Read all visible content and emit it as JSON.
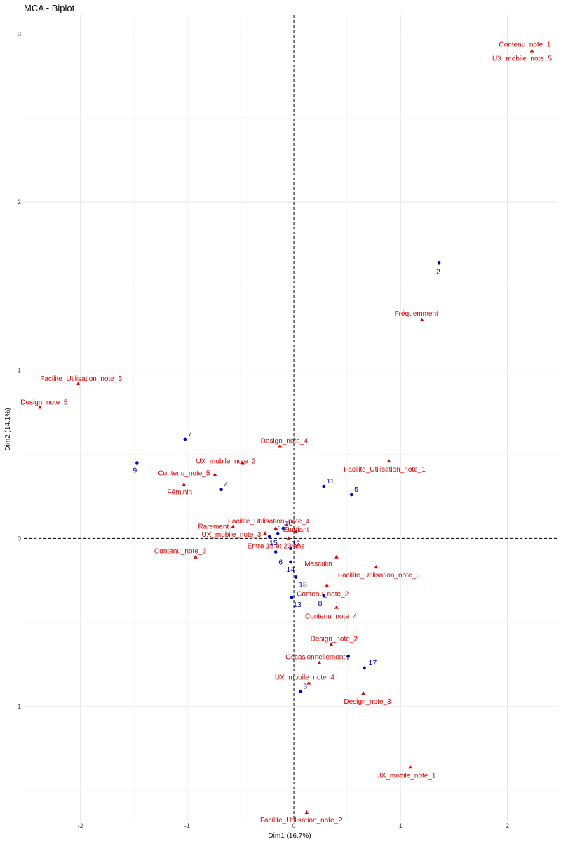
{
  "chart_data": {
    "type": "scatter",
    "title": "MCA - Biplot",
    "xlabel": "Dim1 (16.7%)",
    "ylabel": "Dim2 (14.1%)",
    "xlim": [
      -2.53,
      2.47
    ],
    "ylim": [
      -1.68,
      3.11
    ],
    "xticks": [
      -2,
      -1,
      0,
      1,
      2
    ],
    "yticks": [
      -1,
      0,
      1,
      2,
      3
    ],
    "grid": true,
    "reference_lines": "dashed lines at x=0 and y=0",
    "colors": {
      "individuals": "#0000CC",
      "categories": "#DD0000"
    },
    "individuals": [
      {
        "label": "1",
        "x": 0.51,
        "y": -0.7
      },
      {
        "label": "2",
        "x": 1.36,
        "y": 1.64
      },
      {
        "label": "3",
        "x": 0.06,
        "y": -0.91
      },
      {
        "label": "4",
        "x": -0.68,
        "y": 0.29
      },
      {
        "label": "5",
        "x": 0.54,
        "y": 0.26
      },
      {
        "label": "6",
        "x": -0.17,
        "y": -0.08
      },
      {
        "label": "7",
        "x": -1.02,
        "y": 0.59
      },
      {
        "label": "8",
        "x": 0.28,
        "y": -0.34
      },
      {
        "label": "9",
        "x": -1.47,
        "y": 0.45
      },
      {
        "label": "10",
        "x": -0.1,
        "y": 0.06
      },
      {
        "label": "11",
        "x": 0.28,
        "y": 0.31
      },
      {
        "label": "12",
        "x": -0.03,
        "y": -0.06
      },
      {
        "label": "13",
        "x": -0.02,
        "y": -0.35
      },
      {
        "label": "14",
        "x": -0.03,
        "y": -0.14
      },
      {
        "label": "15",
        "x": -0.23,
        "y": 0.01
      },
      {
        "label": "16",
        "x": -0.15,
        "y": 0.03
      },
      {
        "label": "17",
        "x": 0.66,
        "y": -0.77
      },
      {
        "label": "18",
        "x": 0.02,
        "y": -0.23
      }
    ],
    "categories": [
      {
        "label": "Contenu_note_1",
        "x": 2.23,
        "y": 2.9
      },
      {
        "label": "UX_mobile_note_5",
        "x": 2.23,
        "y": 2.9
      },
      {
        "label": "Fréquemment",
        "x": 1.2,
        "y": 1.3
      },
      {
        "label": "Facilite_Utilisation_note_5",
        "x": -2.02,
        "y": 0.92
      },
      {
        "label": "Design_note_5",
        "x": -2.38,
        "y": 0.78
      },
      {
        "label": "Design_note_4",
        "x": -0.13,
        "y": 0.55
      },
      {
        "label": "UX_mobile_note_2",
        "x": -0.48,
        "y": 0.45
      },
      {
        "label": "Facilite_Utilisation_note_1",
        "x": 0.89,
        "y": 0.46
      },
      {
        "label": "Contenu_note_5",
        "x": -0.74,
        "y": 0.38
      },
      {
        "label": "Féminin",
        "x": -1.03,
        "y": 0.32
      },
      {
        "label": "Facilite_Utilisation_note_4",
        "x": -0.17,
        "y": 0.06
      },
      {
        "label": "Rarement",
        "x": -0.57,
        "y": 0.07
      },
      {
        "label": "Etudiant",
        "x": 0.02,
        "y": 0.04
      },
      {
        "label": "UX_mobile_note_3",
        "x": -0.27,
        "y": 0.03
      },
      {
        "label": "Entre 18 et 23 ans",
        "x": -0.05,
        "y": 0.0
      },
      {
        "label": "Contenu_note_3",
        "x": -0.92,
        "y": -0.11
      },
      {
        "label": "Masculin",
        "x": 0.4,
        "y": -0.11
      },
      {
        "label": "Facilite_Utilisation_note_3",
        "x": 0.77,
        "y": -0.17
      },
      {
        "label": "Contenu_note_2",
        "x": 0.31,
        "y": -0.28
      },
      {
        "label": "Contenu_note_4",
        "x": 0.4,
        "y": -0.41
      },
      {
        "label": "Design_note_2",
        "x": 0.35,
        "y": -0.63
      },
      {
        "label": "Occasionnellement",
        "x": 0.24,
        "y": -0.74
      },
      {
        "label": "UX_mobile_note_4",
        "x": 0.14,
        "y": -0.86
      },
      {
        "label": "Design_note_3",
        "x": 0.65,
        "y": -0.92
      },
      {
        "label": "UX_mobile_note_1",
        "x": 1.09,
        "y": -1.36
      },
      {
        "label": "Facilite_Utilisation_note_2",
        "x": 0.12,
        "y": -1.63
      }
    ]
  }
}
